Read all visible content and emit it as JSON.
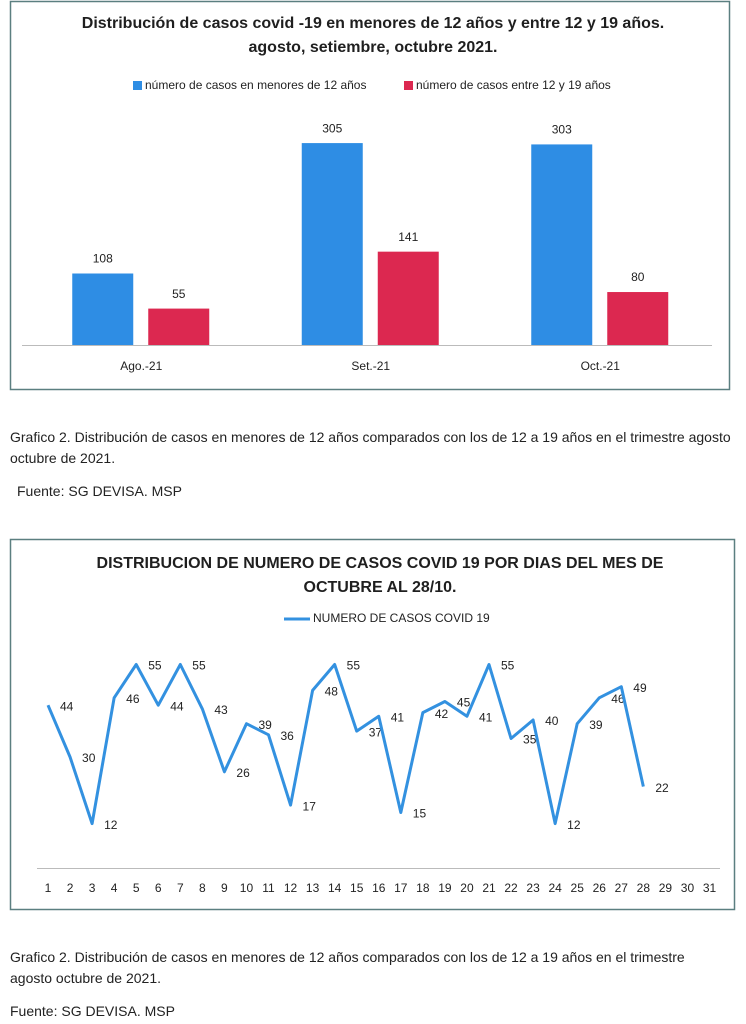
{
  "chart_data": [
    {
      "type": "bar",
      "title": "Distribución de casos covid -19 en menores de 12 años y entre 12 y 19 años. agosto, setiembre, octubre 2021.",
      "categories": [
        "Ago.-21",
        "Set.-21",
        "Oct.-21"
      ],
      "series": [
        {
          "name": "número de casos en menores de 12 años",
          "color": "#2e8de4",
          "values": [
            108,
            305,
            303
          ]
        },
        {
          "name": "número de casos entre 12 y 19 años",
          "color": "#dc2850",
          "values": [
            55,
            141,
            80
          ]
        }
      ]
    },
    {
      "type": "line",
      "title": "DISTRIBUCION DE NUMERO DE CASOS COVID 19 POR DIAS DEL MES DE OCTUBRE AL 28/10.",
      "categories": [
        "1",
        "2",
        "3",
        "4",
        "5",
        "6",
        "7",
        "8",
        "9",
        "10",
        "11",
        "12",
        "13",
        "14",
        "15",
        "16",
        "17",
        "18",
        "19",
        "20",
        "21",
        "22",
        "23",
        "24",
        "25",
        "26",
        "27",
        "28",
        "29",
        "30",
        "31"
      ],
      "series": [
        {
          "name": "NUMERO DE CASOS COVID 19",
          "color": "#3391e0",
          "values": [
            44,
            30,
            12,
            46,
            55,
            44,
            55,
            43,
            26,
            39,
            36,
            17,
            48,
            55,
            37,
            41,
            15,
            42,
            45,
            41,
            55,
            35,
            40,
            12,
            39,
            46,
            49,
            22,
            null,
            null,
            null
          ]
        }
      ]
    }
  ],
  "captions": [
    {
      "text": "Grafico 2. Distribución de casos en menores de 12 años comparados con los de 12 a 19 años en el trimestre agosto octubre de 2021.",
      "source": "Fuente: SG DEVISA. MSP"
    },
    {
      "text": "Grafico 2. Distribución de casos en menores de 12 años comparados con los de 12 a 19 años en el trimestre agosto octubre de 2021.",
      "source": "Fuente: SG DEVISA. MSP"
    }
  ]
}
